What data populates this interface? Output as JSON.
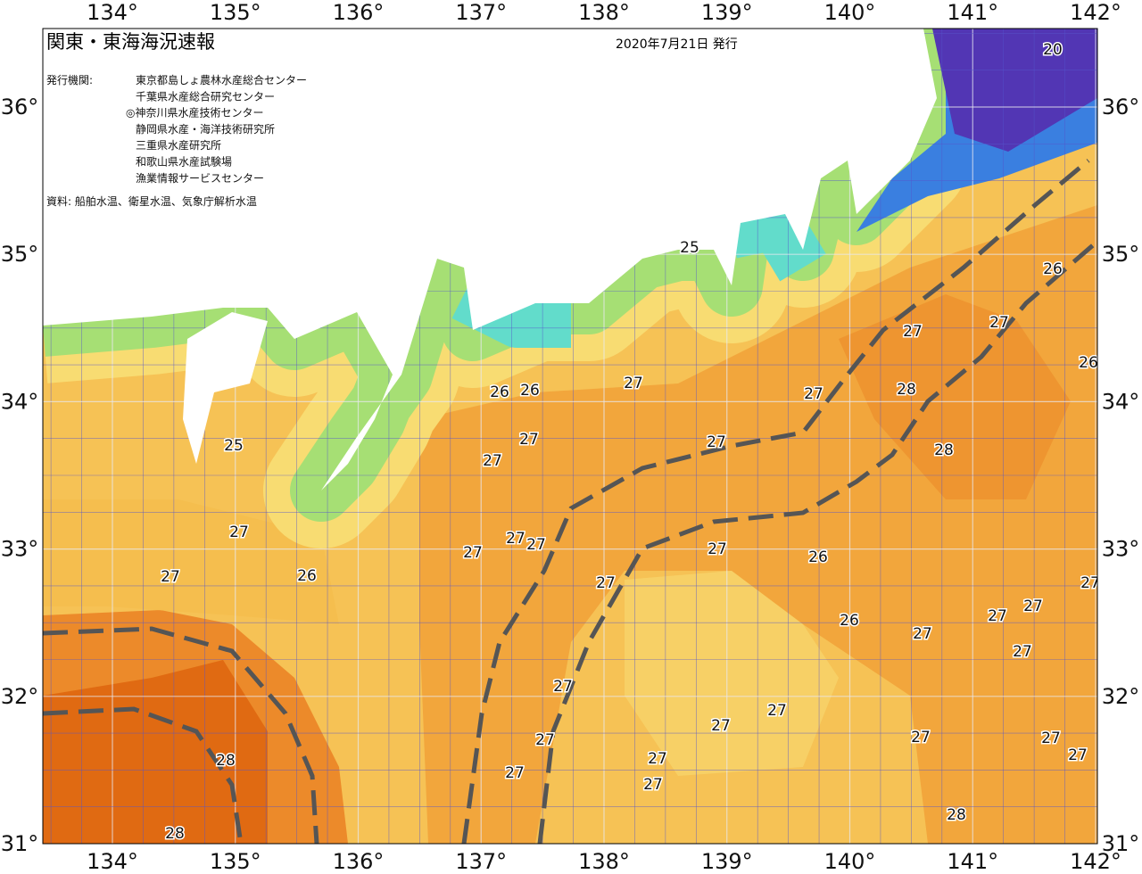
{
  "header": {
    "title": "関東・東海海況速報",
    "date": "2020年7月21日 発行"
  },
  "issuers": {
    "label": "発行機関:",
    "items": [
      "東京都島しょ農林水産総合センター",
      "千葉県水産総合研究センター",
      "◎神奈川県水産技術センター",
      "静岡県水産・海洋技術研究所",
      "三重県水産研究所",
      "和歌山県水産試験場",
      "漁業情報サービスセンター"
    ]
  },
  "source": "資料: 船舶水温、衛星水温、気象庁解析水温",
  "lon_labels": [
    "134°",
    "135°",
    "136°",
    "137°",
    "138°",
    "139°",
    "140°",
    "141°",
    "142°"
  ],
  "lat_labels": [
    "36°",
    "35°",
    "34°",
    "33°",
    "32°",
    "31°"
  ],
  "contour_labels": [
    20,
    25,
    26,
    27,
    27,
    26,
    26,
    26,
    27,
    27,
    28,
    25,
    27,
    27,
    27,
    28,
    27,
    27,
    27,
    27,
    27,
    26,
    27,
    26,
    27,
    27,
    27,
    27,
    26,
    27,
    27,
    27,
    27,
    27,
    27,
    27,
    27,
    27,
    28,
    27,
    27,
    27,
    28,
    28
  ]
}
